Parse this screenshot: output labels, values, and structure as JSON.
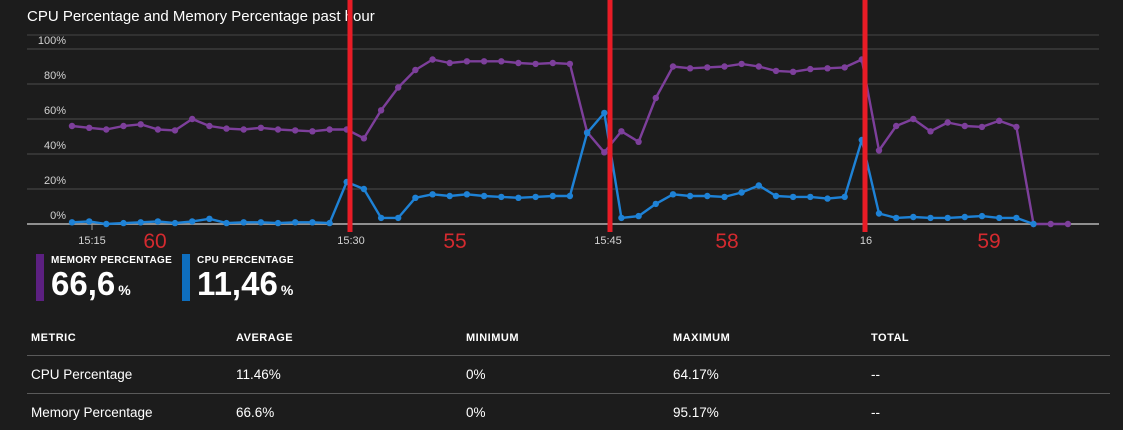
{
  "title": "CPU Percentage and Memory Percentage past hour",
  "chart_data": {
    "type": "line",
    "title": "CPU Percentage and Memory Percentage past hour",
    "ylabel": "",
    "xlabel": "",
    "ylim": [
      0,
      100
    ],
    "grid": true,
    "legend_position": "bottom-left",
    "y_tick_labels": [
      "100%",
      "80%",
      "60%",
      "40%",
      "20%",
      "0%"
    ],
    "x_tick_labels": [
      "15:15",
      "15:30",
      "15:45",
      "16"
    ],
    "series": [
      {
        "name": "Memory Percentage",
        "color": "#7d3f9b",
        "values": [
          56,
          55,
          54,
          56,
          57,
          54,
          53.5,
          60,
          56,
          54.5,
          54,
          55,
          54,
          53.5,
          53,
          54,
          54,
          49,
          65,
          78,
          88,
          94,
          92,
          93,
          93,
          93,
          92,
          91.5,
          92,
          91.5,
          52.5,
          41,
          53,
          47,
          72,
          90,
          89,
          89.5,
          90,
          91.5,
          90,
          87.5,
          87,
          88.5,
          89,
          89.5,
          94,
          42,
          56,
          60,
          53,
          58,
          56,
          55.5,
          59,
          55.5,
          0,
          0,
          0
        ]
      },
      {
        "name": "CPU Percentage",
        "color": "#1e82d6",
        "values": [
          1,
          1.5,
          0,
          0.5,
          1,
          1.5,
          0.5,
          1.5,
          3,
          0.5,
          1,
          1,
          0.5,
          1,
          1,
          0.5,
          24,
          20,
          3.5,
          3.5,
          15,
          17,
          16,
          17,
          16,
          15.5,
          15,
          15.5,
          16,
          16,
          52,
          63.5,
          3.5,
          4.5,
          11.5,
          17,
          16,
          16,
          15.5,
          18,
          22,
          16,
          15.5,
          15.5,
          14.5,
          15.5,
          48,
          6,
          3.5,
          4,
          3.5,
          3.5,
          4,
          4.5,
          3.5,
          3.5,
          0
        ]
      }
    ],
    "annotations": {
      "vertical_line_color": "#e81c26",
      "vertical_lines_at": [
        "15:30",
        "15:45",
        "16"
      ],
      "label_color": "#d42a2f",
      "labels": [
        {
          "text": "60"
        },
        {
          "text": "55"
        },
        {
          "text": "58"
        },
        {
          "text": "59"
        }
      ]
    }
  },
  "legend": {
    "items": [
      {
        "label": "MEMORY PERCENTAGE",
        "value": "66,6",
        "unit": "%",
        "color": "#5c2081"
      },
      {
        "label": "CPU PERCENTAGE",
        "value": "11,46",
        "unit": "%",
        "color": "#0e6ebe"
      }
    ]
  },
  "table": {
    "headers": [
      "METRIC",
      "AVERAGE",
      "MINIMUM",
      "MAXIMUM",
      "TOTAL"
    ],
    "rows": [
      {
        "metric": "CPU Percentage",
        "average": "11.46%",
        "minimum": "0%",
        "maximum": "64.17%",
        "total": "--"
      },
      {
        "metric": "Memory Percentage",
        "average": "66.6%",
        "minimum": "0%",
        "maximum": "95.17%",
        "total": "--"
      }
    ]
  }
}
